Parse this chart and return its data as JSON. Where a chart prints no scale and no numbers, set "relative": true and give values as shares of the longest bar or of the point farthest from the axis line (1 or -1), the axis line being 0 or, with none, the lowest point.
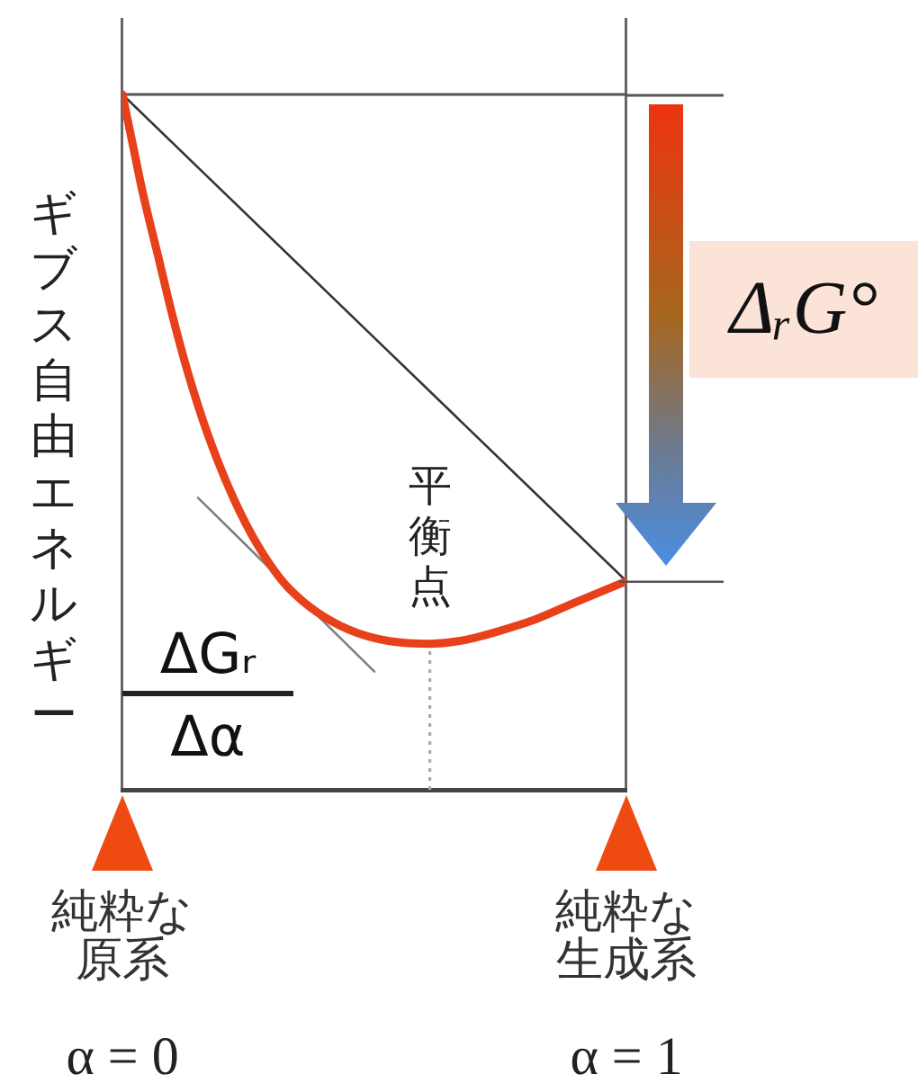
{
  "chart_data": {
    "type": "line",
    "ylabel": "ギブス自由エネルギー",
    "relative": true,
    "xlim": [
      0,
      1
    ],
    "xticks": [
      {
        "value": 0,
        "label": "α = 0"
      },
      {
        "value": 1,
        "label": "α = 1"
      }
    ],
    "grid": "x",
    "legend": false,
    "marker": "none",
    "series": [
      {
        "color": "#e8401a",
        "x": [
          0,
          0.02,
          0.04,
          0.07,
          0.1,
          0.13,
          0.17,
          0.22,
          0.27,
          0.33,
          0.45,
          0.61,
          0.8,
          0.9,
          1
        ],
        "values": [
          1,
          0.93,
          0.86,
          0.77,
          0.68,
          0.6,
          0.51,
          0.42,
          0.35,
          0.29,
          0.23,
          0.21,
          0.24,
          0.27,
          0.3
        ]
      },
      {
        "color": "#333333",
        "x": [
          0,
          1
        ],
        "values": [
          1,
          0.3
        ]
      },
      {
        "color": "#808080",
        "x": [
          0.15,
          0.5
        ],
        "values": [
          0.42,
          0.17
        ]
      }
    ],
    "ref_lines": [
      {
        "axis": "x",
        "value": 0.61,
        "label": "平衡点",
        "line_style": "dotted",
        "color": "#aaaaaa"
      },
      {
        "axis": "y",
        "value": 1,
        "color": "#555555"
      }
    ],
    "annotations": [
      "ΔGᵣ",
      "Δα",
      "ΔᵣG°",
      "純粋な原系",
      "純粋な生成系"
    ]
  }
}
